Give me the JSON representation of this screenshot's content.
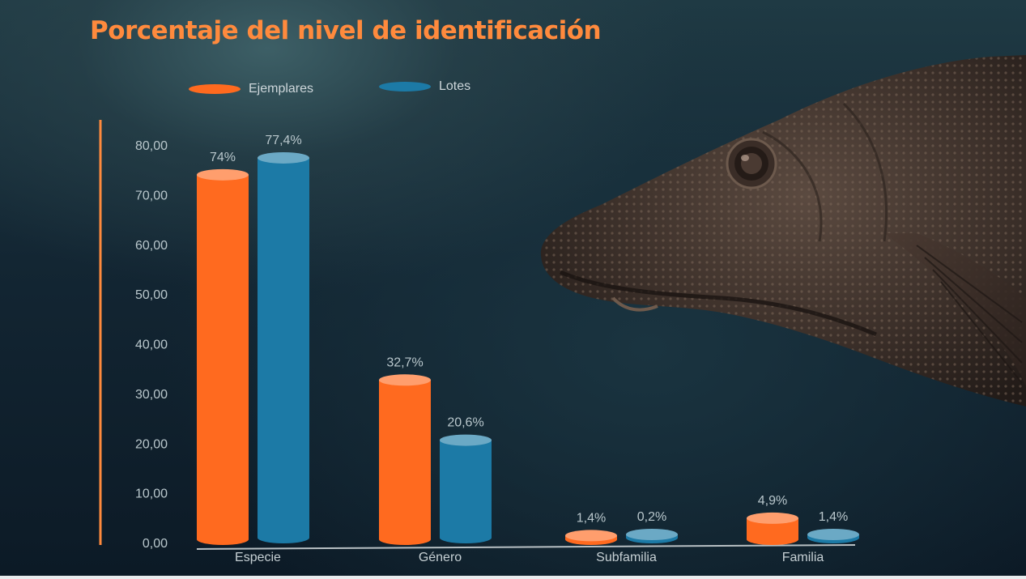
{
  "title": "Porcentaje del nivel de identificación",
  "colors": {
    "title": "#ff8a3d",
    "axis_accent": "#ff8a3d",
    "ejemplares": "#ff6a1f",
    "lotes": "#1c7aa6",
    "tick_text": "#b9c7cc"
  },
  "legend": {
    "ejemplares": "Ejemplares",
    "lotes": "Lotes"
  },
  "image": {
    "icon": "catfish-head-photo"
  },
  "chart_data": {
    "type": "bar",
    "title": "Porcentaje del nivel de identificación",
    "categories": [
      "Especie",
      "Género",
      "Subfamilia",
      "Familia"
    ],
    "series": [
      {
        "name": "Ejemplares",
        "values": [
          74,
          32.7,
          1.4,
          4.9
        ],
        "labels": [
          "74%",
          "32,7%",
          "1,4%",
          "4,9%"
        ]
      },
      {
        "name": "Lotes",
        "values": [
          77.4,
          20.6,
          0.2,
          1.4
        ],
        "labels": [
          "77,4%",
          "20,6%",
          "0,2%",
          "1,4%"
        ]
      }
    ],
    "yticks": [
      "0,00",
      "10,00",
      "20,00",
      "30,00",
      "40,00",
      "50,00",
      "60,00",
      "70,00",
      "80,00"
    ],
    "ylim": [
      0,
      80
    ],
    "grid": false,
    "legend_position": "top-left",
    "xlabel": "",
    "ylabel": ""
  }
}
